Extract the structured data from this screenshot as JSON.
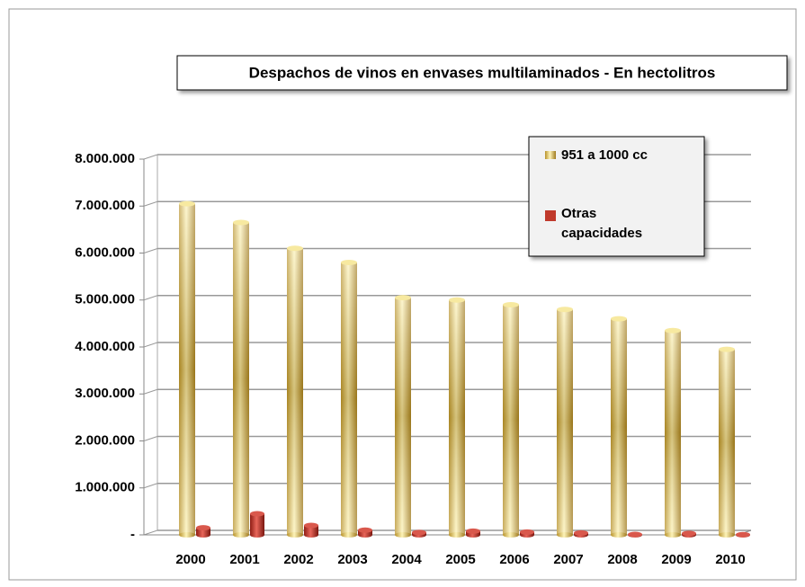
{
  "chart_data": {
    "type": "bar",
    "title": "Despachos de vinos en envases multilaminados - En hectolitros",
    "categories": [
      "2000",
      "2001",
      "2002",
      "2003",
      "2004",
      "2005",
      "2006",
      "2007",
      "2008",
      "2009",
      "2010"
    ],
    "series": [
      {
        "name": "951 a 1000 cc",
        "color": "#c9a43a",
        "values": [
          7050000,
          6650000,
          6100000,
          5800000,
          5050000,
          5000000,
          4900000,
          4800000,
          4600000,
          4350000,
          3950000
        ]
      },
      {
        "name": "Otras capacidades",
        "color": "#c0392b",
        "values": [
          150000,
          450000,
          200000,
          100000,
          50000,
          80000,
          60000,
          40000,
          10000,
          30000,
          5000
        ]
      }
    ],
    "ylim": [
      0,
      8000000
    ],
    "yticks": [
      {
        "value": 0,
        "label": "-"
      },
      {
        "value": 1000000,
        "label": "1.000.000"
      },
      {
        "value": 2000000,
        "label": "2.000.000"
      },
      {
        "value": 3000000,
        "label": "3.000.000"
      },
      {
        "value": 4000000,
        "label": "4.000.000"
      },
      {
        "value": 5000000,
        "label": "5.000.000"
      },
      {
        "value": 6000000,
        "label": "6.000.000"
      },
      {
        "value": 7000000,
        "label": "7.000.000"
      },
      {
        "value": 8000000,
        "label": "8.000.000"
      }
    ],
    "grid": true
  }
}
